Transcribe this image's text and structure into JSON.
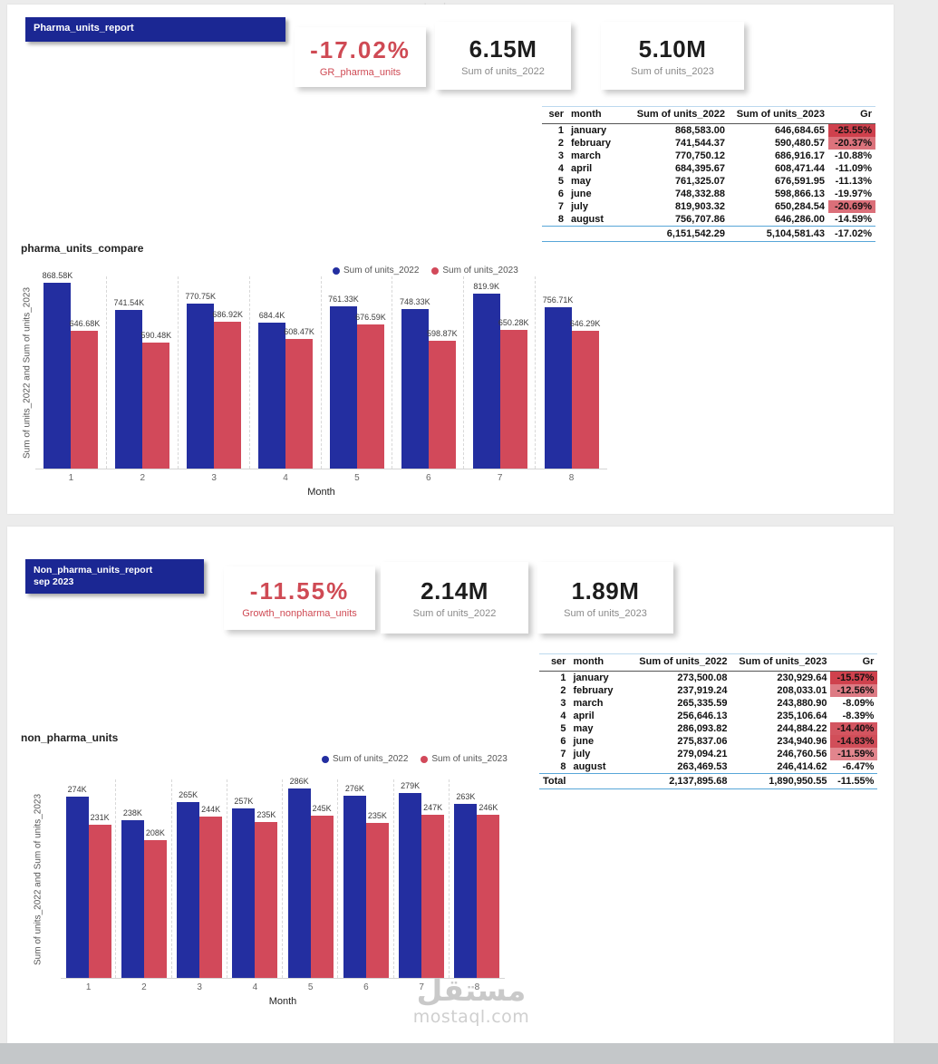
{
  "accent_colors": {
    "banner_blue": "#1b2793",
    "bar_blue": "#232ea0",
    "bar_red": "#d2495a",
    "kpi_red": "#cf4a54",
    "table_rule_blue": "#58a6d8"
  },
  "pharma": {
    "banner": "Pharma_units_report",
    "kpis": {
      "growth": {
        "value": "-17.02%",
        "label": "GR_pharma_units"
      },
      "y2022": {
        "value": "6.15M",
        "label": "Sum of units_2022"
      },
      "y2023": {
        "value": "5.10M",
        "label": "Sum of units_2023"
      }
    },
    "table": {
      "headers": [
        "ser",
        "month",
        "Sum of units_2022",
        "Sum of units_2023",
        "Gr"
      ],
      "rows": [
        {
          "ser": "1",
          "month": "january",
          "u2022": "868,583.00",
          "u2023": "646,684.65",
          "gr": "-25.55%",
          "gr_bg": "#cf414d"
        },
        {
          "ser": "2",
          "month": "february",
          "u2022": "741,544.37",
          "u2023": "590,480.57",
          "gr": "-20.37%",
          "gr_bg": "#dc737c"
        },
        {
          "ser": "3",
          "month": "march",
          "u2022": "770,750.12",
          "u2023": "686,916.17",
          "gr": "-10.88%"
        },
        {
          "ser": "4",
          "month": "april",
          "u2022": "684,395.67",
          "u2023": "608,471.44",
          "gr": "-11.09%"
        },
        {
          "ser": "5",
          "month": "may",
          "u2022": "761,325.07",
          "u2023": "676,591.95",
          "gr": "-11.13%"
        },
        {
          "ser": "6",
          "month": "june",
          "u2022": "748,332.88",
          "u2023": "598,866.13",
          "gr": "-19.97%"
        },
        {
          "ser": "7",
          "month": "july",
          "u2022": "819,903.32",
          "u2023": "650,284.54",
          "gr": "-20.69%",
          "gr_bg": "#db6f79"
        },
        {
          "ser": "8",
          "month": "august",
          "u2022": "756,707.86",
          "u2023": "646,286.00",
          "gr": "-14.59%"
        }
      ],
      "total": {
        "ser": "",
        "month": "",
        "u2022": "6,151,542.29",
        "u2023": "5,104,581.43",
        "gr": "-17.02%"
      }
    }
  },
  "nonpharma": {
    "banner_line1": "Non_pharma_units_report",
    "banner_line2": "sep 2023",
    "kpis": {
      "growth": {
        "value": "-11.55%",
        "label": "Growth_nonpharma_units"
      },
      "y2022": {
        "value": "2.14M",
        "label": "Sum of units_2022"
      },
      "y2023": {
        "value": "1.89M",
        "label": "Sum of units_2023"
      }
    },
    "table": {
      "headers": [
        "ser",
        "month",
        "Sum of units_2022",
        "Sum of units_2023",
        "Gr"
      ],
      "rows": [
        {
          "ser": "1",
          "month": "january",
          "u2022": "273,500.08",
          "u2023": "230,929.64",
          "gr": "-15.57%",
          "gr_bg": "#cf414d"
        },
        {
          "ser": "2",
          "month": "february",
          "u2022": "237,919.24",
          "u2023": "208,033.01",
          "gr": "-12.56%",
          "gr_bg": "#dd7b84"
        },
        {
          "ser": "3",
          "month": "march",
          "u2022": "265,335.59",
          "u2023": "243,880.90",
          "gr": "-8.09%"
        },
        {
          "ser": "4",
          "month": "april",
          "u2022": "256,646.13",
          "u2023": "235,106.64",
          "gr": "-8.39%"
        },
        {
          "ser": "5",
          "month": "may",
          "u2022": "286,093.82",
          "u2023": "244,884.22",
          "gr": "-14.40%",
          "gr_bg": "#d35560"
        },
        {
          "ser": "6",
          "month": "june",
          "u2022": "275,837.06",
          "u2023": "234,940.96",
          "gr": "-14.83%",
          "gr_bg": "#d14e59"
        },
        {
          "ser": "7",
          "month": "july",
          "u2022": "279,094.21",
          "u2023": "246,760.56",
          "gr": "-11.59%",
          "gr_bg": "#e2858d"
        },
        {
          "ser": "8",
          "month": "august",
          "u2022": "263,469.53",
          "u2023": "246,414.62",
          "gr": "-6.47%"
        }
      ],
      "total": {
        "ser": "Total",
        "month": "",
        "u2022": "2,137,895.68",
        "u2023": "1,890,950.55",
        "gr": "-11.55%"
      }
    }
  },
  "chart_data": [
    {
      "type": "bar",
      "title": "pharma_units_compare",
      "categories": [
        "1",
        "2",
        "3",
        "4",
        "5",
        "6",
        "7",
        "8"
      ],
      "series": [
        {
          "name": "Sum of units_2022",
          "color": "#232ea0",
          "values": [
            868583,
            741544,
            770750,
            684396,
            761325,
            748333,
            819903,
            756708
          ],
          "labels": [
            "868.58K",
            "741.54K",
            "770.75K",
            "684.4K",
            "761.33K",
            "748.33K",
            "819.9K",
            "756.71K"
          ]
        },
        {
          "name": "Sum of units_2023",
          "color": "#d2495a",
          "values": [
            646685,
            590481,
            686916,
            608471,
            676592,
            598866,
            650285,
            646286
          ],
          "labels": [
            "646.68K",
            "590.48K",
            "686.92K",
            "608.47K",
            "676.59K",
            "598.87K",
            "650.28K",
            "646.29K"
          ]
        }
      ],
      "xlabel": "Month",
      "ylabel": "Sum of units_2022 and Sum of units_2023",
      "ylim": [
        0,
        900000
      ],
      "legend_position": "top",
      "grid": "dashed-vertical-separators"
    },
    {
      "type": "bar",
      "title": "non_pharma_units",
      "categories": [
        "1",
        "2",
        "3",
        "4",
        "5",
        "6",
        "7",
        "8"
      ],
      "series": [
        {
          "name": "Sum of units_2022",
          "color": "#232ea0",
          "values": [
            273500,
            237919,
            265336,
            256646,
            286094,
            275837,
            279094,
            263470
          ],
          "labels": [
            "274K",
            "238K",
            "265K",
            "257K",
            "286K",
            "276K",
            "279K",
            "263K"
          ]
        },
        {
          "name": "Sum of units_2023",
          "color": "#d2495a",
          "values": [
            230930,
            208033,
            243881,
            235107,
            244884,
            234941,
            246761,
            246415
          ],
          "labels": [
            "231K",
            "208K",
            "244K",
            "235K",
            "245K",
            "235K",
            "247K",
            "246K"
          ]
        }
      ],
      "xlabel": "Month",
      "ylabel": "Sum of units_2022 and Sum of units_2023",
      "ylim": [
        0,
        300000
      ],
      "legend_position": "top",
      "grid": "dashed-vertical-separators"
    }
  ],
  "watermark": {
    "arabic": "مستقل",
    "latin": "mostaql.com"
  }
}
